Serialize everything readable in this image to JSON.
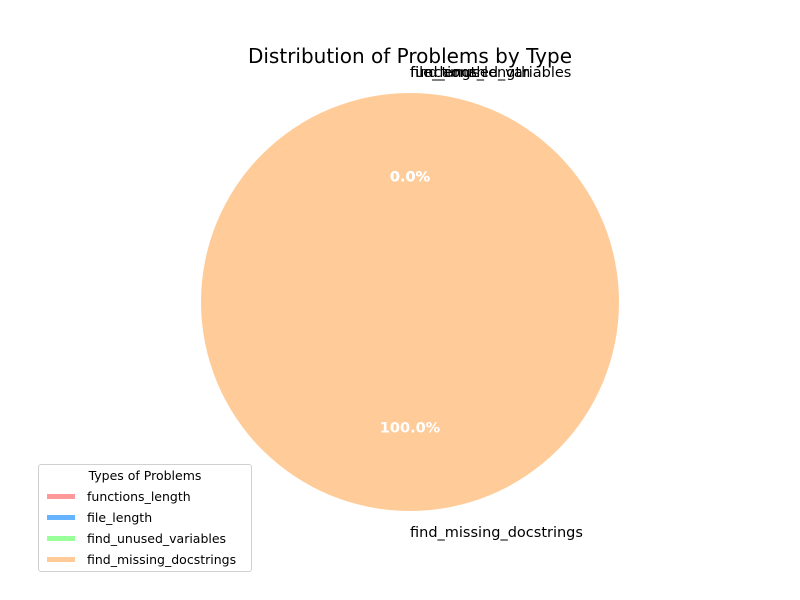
{
  "chart_data": {
    "type": "pie",
    "title": "Distribution of Problems by Type",
    "categories": [
      "functions_length",
      "file_length",
      "find_unused_variables",
      "find_missing_docstrings"
    ],
    "values": [
      0,
      0,
      0,
      100
    ],
    "percent_labels": [
      "0.0%",
      "0.0%",
      "0.0%",
      "100.0%"
    ],
    "colors": [
      "#ff9999",
      "#66b3ff",
      "#99ff99",
      "#ffcc99"
    ],
    "legend": {
      "title": "Types of Problems",
      "placement": "lower-left",
      "entries": [
        "functions_length",
        "file_length",
        "find_unused_variables",
        "find_missing_docstrings"
      ]
    }
  }
}
